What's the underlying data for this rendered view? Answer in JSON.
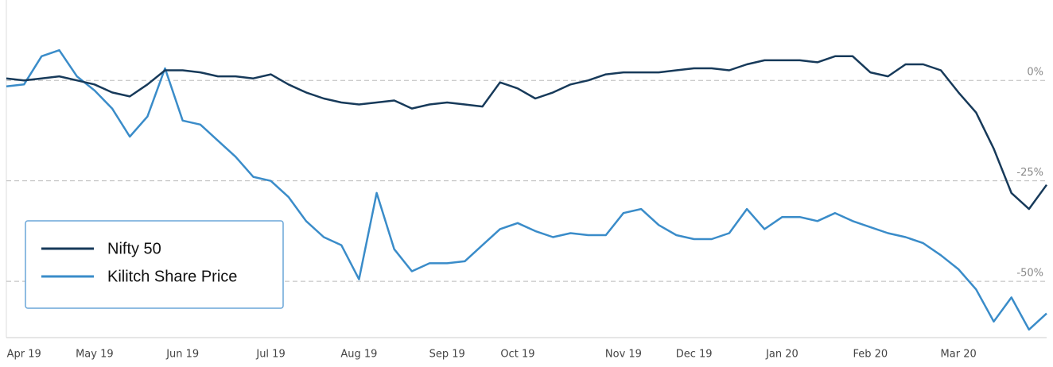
{
  "chart_data": {
    "type": "line",
    "categories": [
      null,
      "Apr 19",
      null,
      null,
      null,
      "May 19",
      null,
      null,
      null,
      null,
      "Jun 19",
      null,
      null,
      null,
      null,
      "Jul 19",
      null,
      null,
      null,
      null,
      "Aug 19",
      null,
      null,
      null,
      null,
      "Sep 19",
      null,
      null,
      null,
      "Oct 19",
      null,
      null,
      null,
      null,
      null,
      "Nov 19",
      null,
      null,
      null,
      "Dec 19",
      null,
      null,
      null,
      null,
      "Jan 20",
      null,
      null,
      null,
      null,
      "Feb 20",
      null,
      null,
      null,
      null,
      "Mar 20",
      null,
      null,
      null,
      null,
      null
    ],
    "series": [
      {
        "name": "Nifty 50",
        "color": "#173a5a",
        "values": [
          0.5,
          0,
          0.5,
          1,
          0,
          -1,
          -3,
          -4,
          -1,
          2.5,
          2.5,
          2,
          1,
          1,
          0.5,
          1.5,
          -1,
          -3,
          -4.5,
          -5.5,
          -6,
          -5.5,
          -5,
          -7,
          -6,
          -5.5,
          -6,
          -6.5,
          -0.5,
          -2,
          -4.5,
          -3,
          -1,
          0,
          1.5,
          2,
          2,
          2,
          2.5,
          3,
          3,
          2.5,
          4,
          5,
          5,
          5,
          4.5,
          6,
          6,
          2,
          1,
          4,
          4,
          2.5,
          -3,
          -8,
          -17,
          -28,
          -32,
          -26
        ]
      },
      {
        "name": "Kilitch Share Price",
        "color": "#3a8cc9",
        "values": [
          -1.5,
          -1,
          6,
          7.5,
          1,
          -2.5,
          -7,
          -14,
          -9,
          3,
          -10,
          -11,
          -15,
          -19,
          -24,
          -25,
          -29,
          -35,
          -39,
          -41,
          -49.5,
          -28,
          -42,
          -47.5,
          -45.5,
          -45.5,
          -45,
          -41,
          -37,
          -35.5,
          -37.5,
          -39,
          -38,
          -38.5,
          -38.5,
          -33,
          -32,
          -36,
          -38.5,
          -39.5,
          -39.5,
          -38,
          -32,
          -37,
          -34,
          -34,
          -35,
          -33,
          -35,
          -36.5,
          -38,
          -39,
          -40.5,
          -43.5,
          -47,
          -52,
          -60,
          -54,
          -62,
          -58
        ]
      }
    ],
    "ylim": [
      -64,
      20
    ],
    "yticks": [
      {
        "value": 0,
        "label": "0%"
      },
      {
        "value": -25,
        "label": "-25%"
      },
      {
        "value": -50,
        "label": "-50%"
      }
    ],
    "grid": true
  }
}
